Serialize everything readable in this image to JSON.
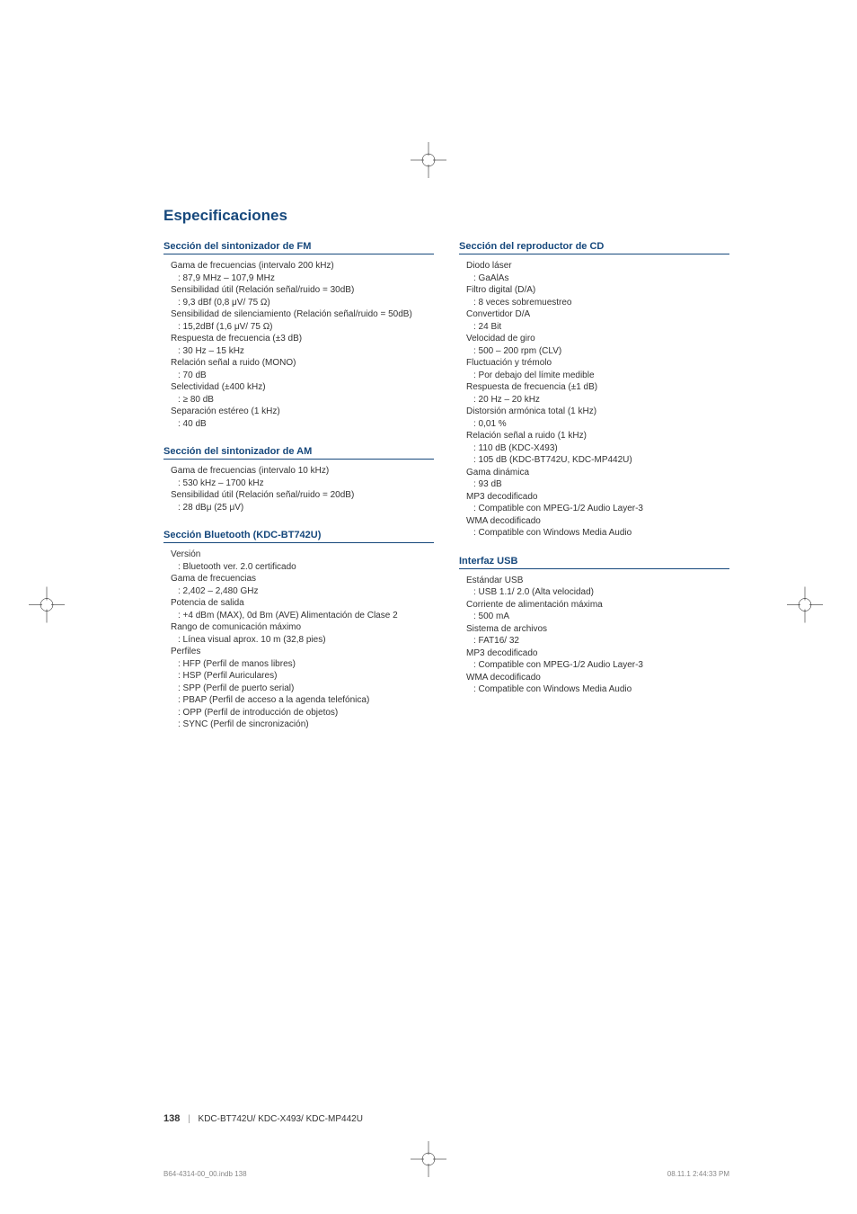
{
  "page": {
    "title": "Especificaciones",
    "number": "138",
    "footer_models": "KDC-BT742U/ KDC-X493/ KDC-MP442U",
    "print_file": "B64-4314-00_00.indb   138",
    "print_time": "08.11.1   2:44:33 PM"
  },
  "colors": {
    "heading": "#16487c",
    "text": "#333333",
    "print": "#888888",
    "bg": "#ffffff"
  },
  "typography": {
    "title_fontsize": 17,
    "section_fontsize": 11,
    "body_fontsize": 10,
    "print_fontsize": 8
  },
  "left_column": [
    {
      "title": "Sección del sintonizador de FM",
      "items": [
        {
          "label": "Gama de frecuencias (intervalo 200 kHz)",
          "value": ": 87,9 MHz – 107,9 MHz"
        },
        {
          "label": "Sensibilidad útil (Relación señal/ruido = 30dB)",
          "value": ": 9,3 dBf (0,8 μV/ 75 Ω)"
        },
        {
          "label": "Sensibilidad de silenciamiento (Relación señal/ruido = 50dB)",
          "value": ": 15,2dBf (1,6 μV/ 75 Ω)"
        },
        {
          "label": "Respuesta de frecuencia (±3 dB)",
          "value": ": 30 Hz – 15 kHz"
        },
        {
          "label": "Relación señal a ruido (MONO)",
          "value": ": 70 dB"
        },
        {
          "label": "Selectividad (±400 kHz)",
          "value": ": ≥ 80 dB"
        },
        {
          "label": "Separación estéreo (1 kHz)",
          "value": ": 40 dB"
        }
      ]
    },
    {
      "title": "Sección del sintonizador de AM",
      "items": [
        {
          "label": "Gama de frecuencias (intervalo 10 kHz)",
          "value": ": 530 kHz – 1700 kHz"
        },
        {
          "label": "Sensibilidad útil (Relación señal/ruido = 20dB)",
          "value": ": 28 dBμ (25 μV)"
        }
      ]
    },
    {
      "title": "Sección Bluetooth (KDC-BT742U)",
      "items": [
        {
          "label": "Versión",
          "value": ": Bluetooth ver. 2.0 certificado"
        },
        {
          "label": "Gama de frecuencias",
          "value": ": 2,402 – 2,480 GHz"
        },
        {
          "label": "Potencia de salida",
          "value": ": +4 dBm (MAX), 0d Bm (AVE) Alimentación de Clase 2"
        },
        {
          "label": "Rango de comunicación máximo",
          "value": ": Línea visual aprox. 10 m (32,8 pies)"
        },
        {
          "label": "Perfiles",
          "values": [
            ": HFP (Perfil de manos libres)",
            ": HSP (Perfil Auriculares)",
            ": SPP (Perfil de puerto serial)",
            ": PBAP (Perfil de acceso a la agenda telefónica)",
            ": OPP (Perfil de introducción de objetos)",
            ": SYNC (Perfil de sincronización)"
          ]
        }
      ]
    }
  ],
  "right_column": [
    {
      "title": "Sección del reproductor de CD",
      "items": [
        {
          "label": "Diodo láser",
          "value": ": GaAlAs"
        },
        {
          "label": "Filtro digital (D/A)",
          "value": ": 8 veces sobremuestreo"
        },
        {
          "label": "Convertidor D/A",
          "value": ": 24 Bit"
        },
        {
          "label": "Velocidad de giro",
          "value": ": 500 – 200 rpm (CLV)"
        },
        {
          "label": "Fluctuación y trémolo",
          "value": ": Por debajo del límite medible"
        },
        {
          "label": "Respuesta de frecuencia (±1 dB)",
          "value": ": 20 Hz – 20 kHz"
        },
        {
          "label": "Distorsión armónica total (1 kHz)",
          "value": ": 0,01 %"
        },
        {
          "label": "Relación señal a ruido (1 kHz)",
          "values": [
            ": 110 dB (KDC-X493)",
            ": 105 dB (KDC-BT742U, KDC-MP442U)"
          ]
        },
        {
          "label": "Gama dinámica",
          "value": ": 93 dB"
        },
        {
          "label": "MP3 decodificado",
          "value": ": Compatible con MPEG-1/2 Audio Layer-3"
        },
        {
          "label": "WMA decodificado",
          "value": ": Compatible con Windows Media Audio"
        }
      ]
    },
    {
      "title": "Interfaz USB",
      "items": [
        {
          "label": "Estándar USB",
          "value": ": USB 1.1/ 2.0 (Alta velocidad)"
        },
        {
          "label": "Corriente de alimentación máxima",
          "value": ": 500 mA"
        },
        {
          "label": "Sistema de archivos",
          "value": ": FAT16/ 32"
        },
        {
          "label": "MP3 decodificado",
          "value": ": Compatible con MPEG-1/2 Audio Layer-3"
        },
        {
          "label": "WMA decodificado",
          "value": ": Compatible con Windows Media Audio"
        }
      ]
    }
  ]
}
